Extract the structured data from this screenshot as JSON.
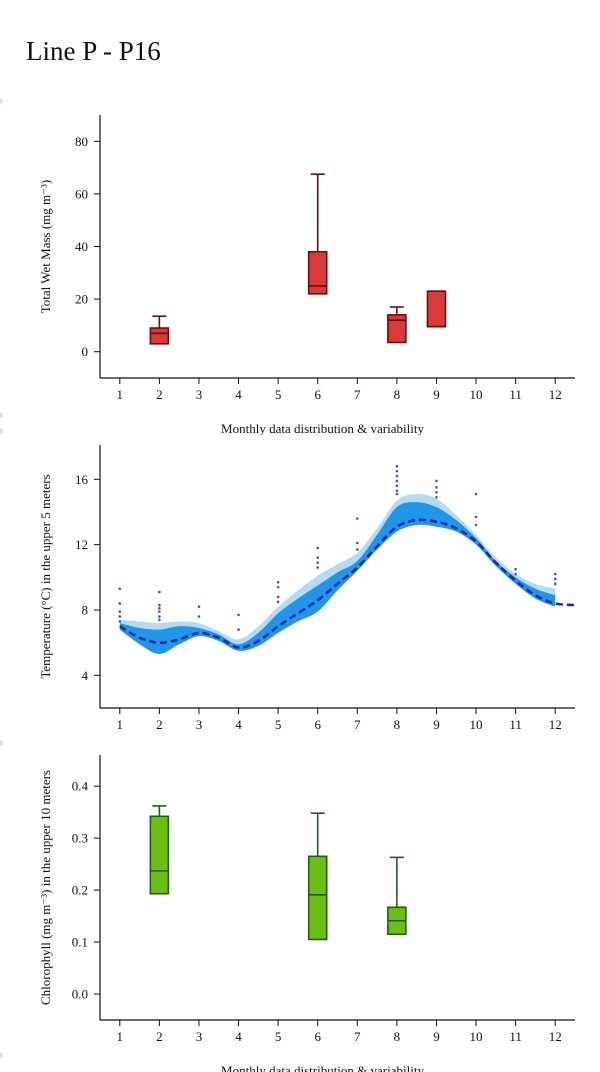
{
  "page": {
    "title": "Line P - P16"
  },
  "chart_data": [
    {
      "type": "boxplot",
      "ylabel": "Total Wet Mass (mg m⁻³)",
      "xlabel": "Monthly data distribution & variability",
      "xlim": [
        0.5,
        12.5
      ],
      "ylim": [
        -10,
        90
      ],
      "x_ticks": [
        1,
        2,
        3,
        4,
        5,
        6,
        7,
        8,
        9,
        10,
        11,
        12
      ],
      "y_ticks": [
        0,
        20,
        40,
        60,
        80
      ],
      "colors": {
        "fill": "#d83a3a",
        "stroke": "#6b0f0f"
      },
      "boxes": [
        {
          "month": 2,
          "min": 3,
          "q1": 3,
          "median": 7,
          "q3": 9,
          "max": 13.5
        },
        {
          "month": 6,
          "min": 22,
          "q1": 22,
          "median": 25,
          "q3": 38,
          "max": 67.5
        },
        {
          "month": 8,
          "min": 3.5,
          "q1": 3.5,
          "median": 12,
          "q3": 14,
          "max": 17
        },
        {
          "month": 9,
          "min": 9.5,
          "q1": 9.5,
          "median": 9.5,
          "q3": 23,
          "max": 23
        }
      ]
    },
    {
      "type": "area",
      "ylabel": "Temperature (°C) in the upper 5 meters",
      "xlim": [
        0.5,
        12.5
      ],
      "ylim": [
        2,
        18.1
      ],
      "x_ticks": [
        1,
        2,
        3,
        4,
        5,
        6,
        7,
        8,
        9,
        10,
        11,
        12
      ],
      "y_ticks": [
        4,
        8,
        12,
        16
      ],
      "colors": {
        "outer_band": "#b4daf4",
        "inner_band": "#2196e8",
        "mean_line": "#1f2ca8",
        "points": "#4a50c8"
      },
      "mean": [
        [
          1,
          7.0
        ],
        [
          1.5,
          6.3
        ],
        [
          2,
          6.0
        ],
        [
          2.5,
          6.2
        ],
        [
          3,
          6.6
        ],
        [
          3.5,
          6.3
        ],
        [
          4,
          5.7
        ],
        [
          4.5,
          6.1
        ],
        [
          5,
          7.0
        ],
        [
          5.5,
          7.8
        ],
        [
          6,
          8.6
        ],
        [
          6.5,
          9.6
        ],
        [
          7,
          10.6
        ],
        [
          7.5,
          11.9
        ],
        [
          8,
          13.1
        ],
        [
          8.5,
          13.5
        ],
        [
          9,
          13.4
        ],
        [
          9.5,
          13.0
        ],
        [
          10,
          12.2
        ],
        [
          10.5,
          10.9
        ],
        [
          11,
          9.8
        ],
        [
          11.5,
          8.9
        ],
        [
          12,
          8.4
        ],
        [
          12.5,
          8.3
        ]
      ],
      "outer_band": {
        "upper": [
          [
            1,
            7.4
          ],
          [
            1.5,
            7.3
          ],
          [
            2,
            7.2
          ],
          [
            2.5,
            7.3
          ],
          [
            3,
            7.2
          ],
          [
            3.5,
            6.7
          ],
          [
            4,
            6.2
          ],
          [
            4.5,
            7.0
          ],
          [
            5,
            8.2
          ],
          [
            5.5,
            9.2
          ],
          [
            6,
            10.1
          ],
          [
            6.5,
            10.8
          ],
          [
            7,
            11.5
          ],
          [
            7.5,
            13.0
          ],
          [
            8,
            14.7
          ],
          [
            8.5,
            15.1
          ],
          [
            9,
            14.8
          ],
          [
            9.5,
            13.8
          ],
          [
            10,
            12.6
          ],
          [
            10.5,
            11.2
          ],
          [
            11,
            10.2
          ],
          [
            11.5,
            9.6
          ],
          [
            12,
            9.3
          ]
        ],
        "lower": [
          [
            1,
            7.0
          ],
          [
            1.5,
            6.2
          ],
          [
            2,
            5.9
          ],
          [
            2.5,
            6.1
          ],
          [
            3,
            6.5
          ],
          [
            3.5,
            6.2
          ],
          [
            4,
            5.6
          ],
          [
            4.5,
            6.0
          ],
          [
            5,
            6.9
          ],
          [
            5.5,
            7.7
          ],
          [
            6,
            8.5
          ],
          [
            6.5,
            9.5
          ],
          [
            7,
            10.5
          ],
          [
            7.5,
            11.8
          ],
          [
            8,
            13.0
          ],
          [
            8.5,
            13.4
          ],
          [
            9,
            13.3
          ],
          [
            9.5,
            12.9
          ],
          [
            10,
            12.1
          ],
          [
            10.5,
            10.8
          ],
          [
            11,
            9.7
          ],
          [
            11.5,
            8.8
          ],
          [
            12,
            8.3
          ]
        ]
      },
      "inner_band": {
        "upper": [
          [
            1,
            7.2
          ],
          [
            1.5,
            6.9
          ],
          [
            2,
            6.8
          ],
          [
            2.5,
            7.0
          ],
          [
            3,
            6.9
          ],
          [
            3.5,
            6.5
          ],
          [
            4,
            5.9
          ],
          [
            4.5,
            6.6
          ],
          [
            5,
            7.8
          ],
          [
            5.5,
            8.7
          ],
          [
            6,
            9.5
          ],
          [
            6.5,
            10.3
          ],
          [
            7,
            11.0
          ],
          [
            7.5,
            12.6
          ],
          [
            8,
            14.3
          ],
          [
            8.5,
            14.6
          ],
          [
            9,
            14.3
          ],
          [
            9.5,
            13.5
          ],
          [
            10,
            12.4
          ],
          [
            10.5,
            11.0
          ],
          [
            11,
            10.0
          ],
          [
            11.5,
            9.3
          ],
          [
            12,
            8.9
          ]
        ],
        "lower": [
          [
            1,
            6.8
          ],
          [
            1.5,
            5.9
          ],
          [
            2,
            5.3
          ],
          [
            2.5,
            5.9
          ],
          [
            3,
            6.4
          ],
          [
            3.5,
            6.1
          ],
          [
            4,
            5.5
          ],
          [
            4.5,
            5.8
          ],
          [
            5,
            6.6
          ],
          [
            5.5,
            7.3
          ],
          [
            6,
            7.9
          ],
          [
            6.5,
            9.2
          ],
          [
            7,
            10.4
          ],
          [
            7.5,
            11.7
          ],
          [
            8,
            12.8
          ],
          [
            8.5,
            13.2
          ],
          [
            9,
            13.1
          ],
          [
            9.5,
            12.8
          ],
          [
            10,
            12.0
          ],
          [
            10.5,
            10.7
          ],
          [
            11,
            9.6
          ],
          [
            11.5,
            8.7
          ],
          [
            12,
            8.2
          ]
        ]
      },
      "points": [
        [
          1,
          9.3
        ],
        [
          1,
          8.4
        ],
        [
          1,
          7.9
        ],
        [
          1,
          7.6
        ],
        [
          1,
          7.3
        ],
        [
          2,
          9.1
        ],
        [
          2,
          8.3
        ],
        [
          2,
          8.1
        ],
        [
          2,
          7.9
        ],
        [
          2,
          7.6
        ],
        [
          2,
          7.4
        ],
        [
          3,
          8.2
        ],
        [
          3,
          7.6
        ],
        [
          4,
          7.7
        ],
        [
          4,
          6.8
        ],
        [
          5,
          9.7
        ],
        [
          5,
          9.4
        ],
        [
          5,
          8.8
        ],
        [
          5,
          8.5
        ],
        [
          6,
          11.8
        ],
        [
          6,
          11.2
        ],
        [
          6,
          10.9
        ],
        [
          6,
          10.6
        ],
        [
          7,
          13.6
        ],
        [
          7,
          12.1
        ],
        [
          7,
          11.7
        ],
        [
          8,
          16.8
        ],
        [
          8,
          16.5
        ],
        [
          8,
          16.2
        ],
        [
          8,
          15.9
        ],
        [
          8,
          15.6
        ],
        [
          8,
          15.3
        ],
        [
          8,
          15.1
        ],
        [
          9,
          15.9
        ],
        [
          9,
          15.5
        ],
        [
          9,
          15.2
        ],
        [
          9,
          14.9
        ],
        [
          10,
          15.1
        ],
        [
          10,
          13.7
        ],
        [
          10,
          13.2
        ],
        [
          11,
          10.5
        ],
        [
          11,
          10.2
        ],
        [
          12,
          10.2
        ],
        [
          12,
          9.9
        ],
        [
          12,
          9.6
        ]
      ]
    },
    {
      "type": "boxplot",
      "ylabel": "Chlorophyll (mg m⁻³) in the upper 10 meters",
      "xlabel": "Monthly data distribution & variability",
      "xlim": [
        0.5,
        12.5
      ],
      "ylim": [
        -0.05,
        0.46
      ],
      "x_ticks": [
        1,
        2,
        3,
        4,
        5,
        6,
        7,
        8,
        9,
        10,
        11,
        12
      ],
      "y_ticks": [
        "0.0",
        "0.1",
        "0.2",
        "0.3",
        "0.4"
      ],
      "colors": {
        "fill": "#6cbd14",
        "stroke": "#1f5f1a"
      },
      "boxes": [
        {
          "month": 2,
          "min": 0.193,
          "q1": 0.193,
          "median": 0.237,
          "q3": 0.342,
          "max": 0.362
        },
        {
          "month": 6,
          "min": 0.105,
          "q1": 0.105,
          "median": 0.191,
          "q3": 0.265,
          "max": 0.348
        },
        {
          "month": 8,
          "min": 0.115,
          "q1": 0.115,
          "median": 0.141,
          "q3": 0.167,
          "max": 0.263
        }
      ]
    }
  ]
}
